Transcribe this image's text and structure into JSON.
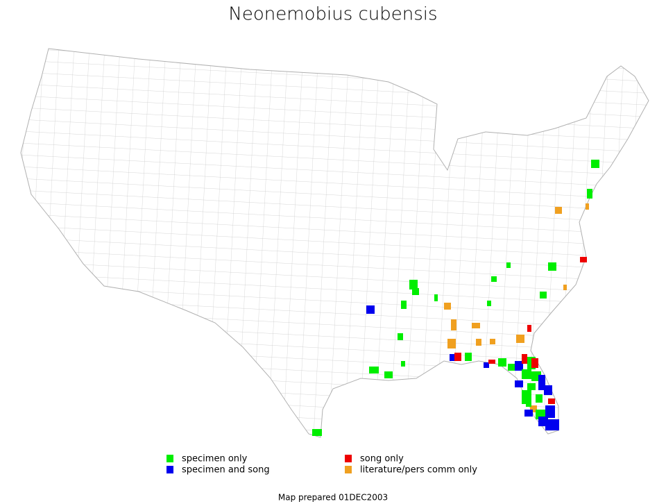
{
  "title": "Neonemobius cubensis",
  "legend": [
    {
      "label": "specimen only",
      "color": "#00ee00"
    },
    {
      "label": "specimen and song",
      "color": "#0000ee"
    },
    {
      "label": "song only",
      "color": "#ee0000"
    },
    {
      "label": "literature/pers comm only",
      "color": "#f0a020"
    }
  ],
  "footer": "Map prepared 01DEC2003"
}
